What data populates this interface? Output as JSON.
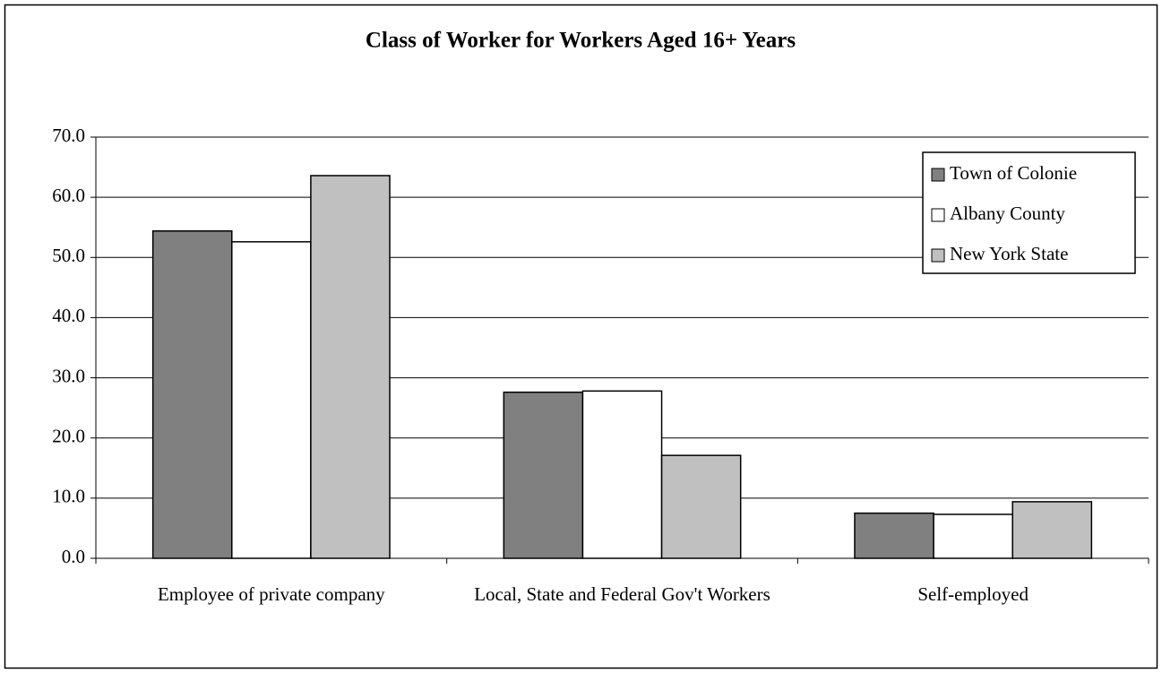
{
  "chart_data": {
    "type": "bar",
    "title": "Class of Worker for Workers Aged 16+ Years",
    "categories": [
      "Employee of private company",
      "Local, State and Federal Gov't Workers",
      "Self-employed"
    ],
    "series": [
      {
        "name": "Town of Colonie",
        "color": "#808080",
        "values": [
          54.4,
          27.6,
          7.5
        ]
      },
      {
        "name": "Albany County",
        "color": "#ffffff",
        "values": [
          52.6,
          27.8,
          7.3
        ]
      },
      {
        "name": "New York State",
        "color": "#c0c0c0",
        "values": [
          63.6,
          17.1,
          9.4
        ]
      }
    ],
    "ylim": [
      0,
      70
    ],
    "yticks": [
      {
        "value": 0,
        "label": "0.0"
      },
      {
        "value": 10,
        "label": "10.0"
      },
      {
        "value": 20,
        "label": "20.0"
      },
      {
        "value": 30,
        "label": "30.0"
      },
      {
        "value": 40,
        "label": "40.0"
      },
      {
        "value": 50,
        "label": "50.0"
      },
      {
        "value": 60,
        "label": "60.0"
      },
      {
        "value": 70,
        "label": "70.0"
      }
    ],
    "grid": true,
    "legend": "top-right"
  }
}
